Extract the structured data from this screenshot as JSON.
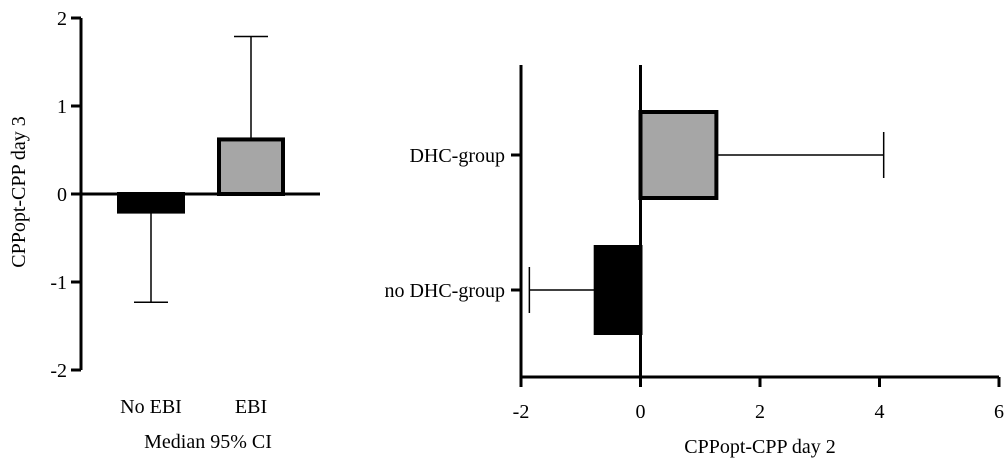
{
  "chart_data": [
    {
      "type": "bar",
      "orientation": "vertical",
      "title": "",
      "xlabel": "Median 95% CI",
      "ylabel": "CPPopt-CPP day 3",
      "ylim": [
        -2,
        2
      ],
      "yticks": [
        2,
        1,
        0,
        -1,
        -2
      ],
      "ytick_labels": [
        "2",
        "1",
        "0",
        "-1",
        "-2"
      ],
      "categories": [
        "No EBI",
        "EBI"
      ],
      "values": [
        -0.2,
        0.62
      ],
      "error_end": [
        -1.23,
        1.79
      ],
      "colors": [
        "#000000",
        "#a6a6a6"
      ],
      "grid": false
    },
    {
      "type": "bar",
      "orientation": "horizontal",
      "title": "",
      "xlabel": "CPPopt-CPP day 2",
      "ylabel": "",
      "xlim": [
        -2,
        6
      ],
      "xticks": [
        -2,
        0,
        2,
        4,
        6
      ],
      "xtick_labels": [
        "-2",
        "0",
        "2",
        "4",
        "6"
      ],
      "categories": [
        "DHC-group",
        "no DHC-group"
      ],
      "values": [
        1.27,
        -0.75
      ],
      "error_end": [
        4.07,
        -1.86
      ],
      "colors": [
        "#a6a6a6",
        "#000000"
      ],
      "grid": false
    }
  ]
}
